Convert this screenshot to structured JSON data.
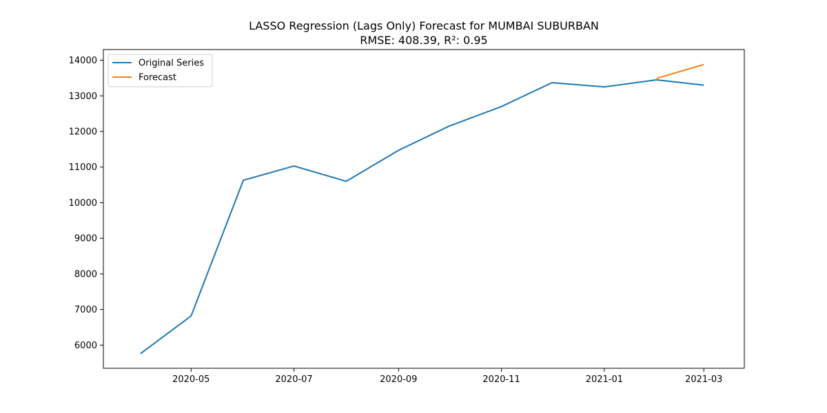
{
  "chart_data": {
    "type": "line",
    "title": "LASSO Regression (Lags Only) Forecast for MUMBAI SUBURBAN",
    "subtitle": "RMSE: 408.39, R²: 0.95",
    "xlabel": "",
    "ylabel": "",
    "x_axis_type": "date",
    "xlim": [
      "2020-03-10",
      "2021-03-25"
    ],
    "ylim": [
      5350,
      14300
    ],
    "x_ticks": [
      {
        "date": "2020-05-01",
        "label": "2020-05"
      },
      {
        "date": "2020-07-01",
        "label": "2020-07"
      },
      {
        "date": "2020-09-01",
        "label": "2020-09"
      },
      {
        "date": "2020-11-01",
        "label": "2020-11"
      },
      {
        "date": "2021-01-01",
        "label": "2021-01"
      },
      {
        "date": "2021-03-01",
        "label": "2021-03"
      }
    ],
    "y_ticks": [
      6000,
      7000,
      8000,
      9000,
      10000,
      11000,
      12000,
      13000,
      14000
    ],
    "grid": false,
    "legend_position": "top-left",
    "series": [
      {
        "name": "Original Series",
        "color": "#1f77b4",
        "x": [
          "2020-04-01",
          "2020-05-01",
          "2020-06-01",
          "2020-07-01",
          "2020-08-01",
          "2020-09-01",
          "2020-10-01",
          "2020-11-01",
          "2020-12-01",
          "2021-01-01",
          "2021-02-01",
          "2021-03-01"
        ],
        "y": [
          5760,
          6820,
          10630,
          11030,
          10600,
          11470,
          12150,
          12700,
          13370,
          13250,
          13450,
          13300
        ]
      },
      {
        "name": "Forecast",
        "color": "#ff7f0e",
        "x": [
          "2021-02-01",
          "2021-03-01"
        ],
        "y": [
          13490,
          13880
        ]
      }
    ]
  }
}
